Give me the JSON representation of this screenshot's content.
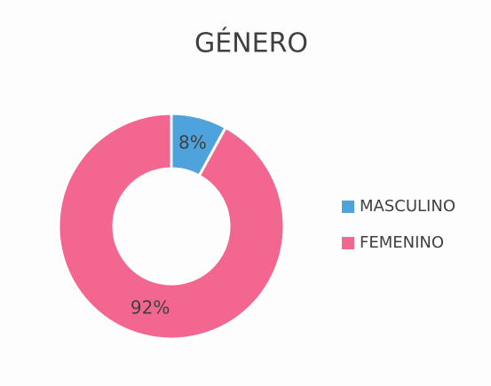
{
  "chart_data": {
    "type": "donut",
    "title": "GÉNERO",
    "categories": [
      "MASCULINO",
      "FEMENINO"
    ],
    "values": [
      8,
      92
    ],
    "value_labels": [
      "8%",
      "92%"
    ],
    "colors": [
      "#4ea3dc",
      "#f2668f"
    ],
    "legend": "right"
  }
}
